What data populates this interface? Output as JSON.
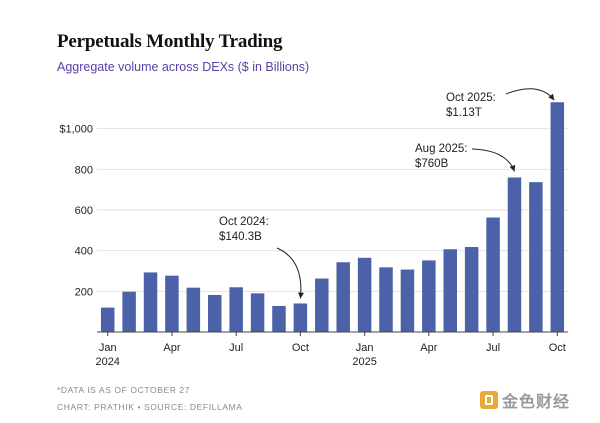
{
  "chart_data": {
    "type": "bar",
    "title": "Perpetuals Monthly Trading",
    "subtitle": "Aggregate volume across DEXs ($ in Billions)",
    "categories": [
      "Jan 2024",
      "Feb 2024",
      "Mar 2024",
      "Apr 2024",
      "May 2024",
      "Jun 2024",
      "Jul 2024",
      "Aug 2024",
      "Sep 2024",
      "Oct 2024",
      "Nov 2024",
      "Dec 2024",
      "Jan 2025",
      "Feb 2025",
      "Mar 2025",
      "Apr 2025",
      "May 2025",
      "Jun 2025",
      "Jul 2025",
      "Aug 2025",
      "Sep 2025",
      "Oct 2025"
    ],
    "values": [
      120,
      198,
      293,
      277,
      218,
      182,
      220,
      190,
      128,
      140.3,
      263,
      343,
      365,
      318,
      307,
      352,
      407,
      418,
      563,
      760,
      737,
      1130
    ],
    "ylim": [
      0,
      1200
    ],
    "yticks": [
      200,
      400,
      600,
      800,
      1000
    ],
    "ytick_labels": [
      "200",
      "400",
      "600",
      "800",
      "$1,000"
    ],
    "xticks": [
      {
        "index": 0,
        "label": "Jan",
        "sublabel": "2024"
      },
      {
        "index": 3,
        "label": "Apr",
        "sublabel": ""
      },
      {
        "index": 6,
        "label": "Jul",
        "sublabel": ""
      },
      {
        "index": 9,
        "label": "Oct",
        "sublabel": ""
      },
      {
        "index": 12,
        "label": "Jan",
        "sublabel": "2025"
      },
      {
        "index": 15,
        "label": "Apr",
        "sublabel": ""
      },
      {
        "index": 18,
        "label": "Jul",
        "sublabel": ""
      },
      {
        "index": 21,
        "label": "Oct",
        "sublabel": ""
      }
    ],
    "annotations": [
      {
        "index": 9,
        "line1": "Oct 2024:",
        "line2": "$140.3B"
      },
      {
        "index": 19,
        "line1": "Aug 2025:",
        "line2": "$760B"
      },
      {
        "index": 21,
        "line1": "Oct 2025:",
        "line2": "$1.13T"
      }
    ],
    "grid": true,
    "colors": {
      "bar": "#4c62a8",
      "grid": "#e2e2e2",
      "axis": "#444444",
      "text": "#222222"
    }
  },
  "footnotes": {
    "line1": "*DATA IS AS OF OCTOBER 27",
    "line2": "CHART: PRATHIK • SOURCE: DEFILLAMA"
  },
  "watermark": {
    "text": "金色财经",
    "icon": "coin-logo-icon"
  }
}
